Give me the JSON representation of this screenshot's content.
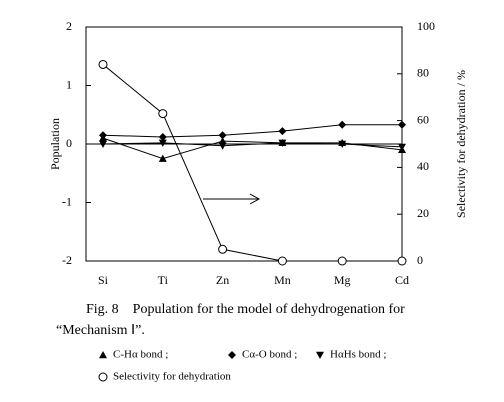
{
  "chart_data": {
    "type": "line",
    "categories": [
      "Si",
      "Ti",
      "Zn",
      "Mn",
      "Mg",
      "Cd"
    ],
    "y_label": "Population",
    "y2_label": "Selectivity for dehydration / %",
    "ylim": [
      -2,
      2
    ],
    "yticks": [
      -2,
      -1,
      0,
      1,
      2
    ],
    "y2lim": [
      0,
      100
    ],
    "y2ticks": [
      0,
      20,
      40,
      60,
      80,
      100
    ],
    "zero_line": true,
    "series": [
      {
        "name": "C-Hα  bond ;",
        "color": "#000000",
        "marker": "triangle-up",
        "values": [
          0.1,
          -0.25,
          0.05,
          0.02,
          0.02,
          -0.1
        ]
      },
      {
        "name": "Cα-O  bond ;",
        "color": "#000000",
        "marker": "diamond",
        "values": [
          0.15,
          0.12,
          0.15,
          0.22,
          0.33,
          0.33
        ]
      },
      {
        "name": "HαHs  bond ;",
        "color": "#000000",
        "marker": "triangle-down",
        "values": [
          0.0,
          0.02,
          -0.03,
          0.02,
          0.0,
          -0.05
        ]
      },
      {
        "name": "Selectivity for dehydration",
        "color": "#000000",
        "marker": "circle-open",
        "axis": "y2",
        "values": [
          84,
          63,
          5,
          0,
          0,
          0
        ]
      }
    ],
    "caption": [
      "Fig. 8　Population for the model of dehydrogenation for",
      "“Mechanism Ⅰ”."
    ]
  }
}
